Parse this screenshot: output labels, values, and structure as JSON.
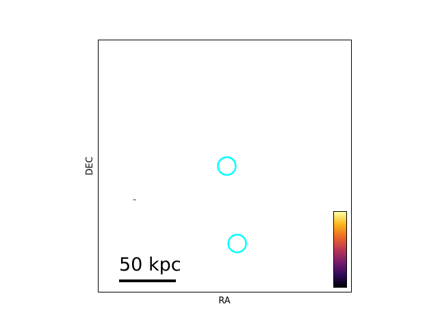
{
  "chart_data": {
    "type": "scatter",
    "title": "",
    "xlabel": "RA",
    "ylabel": "DEC",
    "xlim": [
      0,
      1
    ],
    "ylim": [
      0,
      1
    ],
    "grid": false,
    "ticks": false,
    "markers": {
      "shape": "open-circle",
      "color": "#00ffff",
      "points": [
        {
          "x": 0.508,
          "y": 0.5
        },
        {
          "x": 0.549,
          "y": 0.192
        }
      ]
    },
    "scale_bar": {
      "label": "50 kpc",
      "placement": "bottom-left",
      "color": "#000000"
    },
    "colorbar": {
      "placement": "bottom-right",
      "colormap": "inferno",
      "stops": [
        "#000004",
        "#320a5e",
        "#781c6d",
        "#bc3754",
        "#ed6925",
        "#fbb61a",
        "#fcffa4"
      ],
      "tick_labels": []
    },
    "annotations": [
      {
        "text": "–",
        "x": 0.135,
        "y": 0.357
      }
    ]
  }
}
